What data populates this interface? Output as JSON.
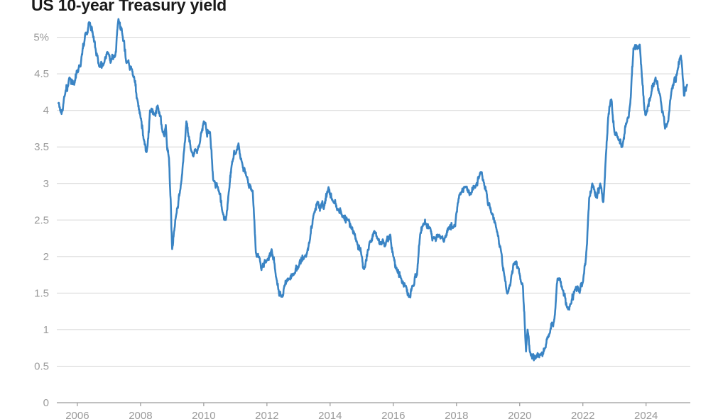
{
  "page": {
    "title": "US 10-year Treasury yield"
  },
  "colors": {
    "line": "#3a84c4",
    "grid": "#d4d4d4",
    "tick_text": "#9a9a9a",
    "title": "#1a1a1a"
  },
  "chart_data": {
    "type": "line",
    "title": "US 10-year Treasury yield",
    "xlabel": "",
    "ylabel": "",
    "xlim": [
      2005.35,
      2025.4
    ],
    "ylim": [
      0,
      5.2
    ],
    "grid": true,
    "y_ticks": [
      {
        "value": 0,
        "label": "0"
      },
      {
        "value": 0.5,
        "label": "0.5"
      },
      {
        "value": 1,
        "label": "1"
      },
      {
        "value": 1.5,
        "label": "1.5"
      },
      {
        "value": 2,
        "label": "2"
      },
      {
        "value": 2.5,
        "label": "2.5"
      },
      {
        "value": 3,
        "label": "3"
      },
      {
        "value": 3.5,
        "label": "3.5"
      },
      {
        "value": 4,
        "label": "4"
      },
      {
        "value": 4.5,
        "label": "4.5"
      },
      {
        "value": 5,
        "label": "5%"
      }
    ],
    "x_ticks": [
      {
        "value": 2006,
        "label": "2006"
      },
      {
        "value": 2008,
        "label": "2008"
      },
      {
        "value": 2010,
        "label": "2010"
      },
      {
        "value": 2012,
        "label": "2012"
      },
      {
        "value": 2014,
        "label": "2014"
      },
      {
        "value": 2016,
        "label": "2016"
      },
      {
        "value": 2018,
        "label": "2018"
      },
      {
        "value": 2020,
        "label": "2020"
      },
      {
        "value": 2022,
        "label": "2022"
      },
      {
        "value": 2024,
        "label": "2024"
      }
    ],
    "series": [
      {
        "color": "#3a84c4",
        "x": [
          2005.4,
          2005.5,
          2005.6,
          2005.75,
          2005.9,
          2006.0,
          2006.1,
          2006.25,
          2006.4,
          2006.5,
          2006.6,
          2006.7,
          2006.85,
          2006.95,
          2007.05,
          2007.2,
          2007.3,
          2007.45,
          2007.55,
          2007.7,
          2007.8,
          2007.9,
          2008.0,
          2008.1,
          2008.2,
          2008.3,
          2008.45,
          2008.55,
          2008.7,
          2008.8,
          2008.9,
          2008.96,
          2009.0,
          2009.1,
          2009.25,
          2009.35,
          2009.45,
          2009.6,
          2009.75,
          2009.85,
          2010.0,
          2010.2,
          2010.3,
          2010.45,
          2010.6,
          2010.7,
          2010.8,
          2010.9,
          2011.0,
          2011.1,
          2011.2,
          2011.35,
          2011.55,
          2011.65,
          2011.75,
          2011.85,
          2012.0,
          2012.15,
          2012.3,
          2012.45,
          2012.55,
          2012.7,
          2012.85,
          2013.0,
          2013.2,
          2013.35,
          2013.5,
          2013.6,
          2013.8,
          2013.95,
          2014.1,
          2014.25,
          2014.4,
          2014.55,
          2014.7,
          2014.85,
          2015.0,
          2015.1,
          2015.25,
          2015.4,
          2015.5,
          2015.6,
          2015.75,
          2015.9,
          2016.0,
          2016.1,
          2016.25,
          2016.4,
          2016.5,
          2016.6,
          2016.75,
          2016.85,
          2016.95,
          2017.15,
          2017.3,
          2017.45,
          2017.6,
          2017.75,
          2017.9,
          2018.0,
          2018.1,
          2018.3,
          2018.45,
          2018.6,
          2018.75,
          2018.85,
          2019.0,
          2019.1,
          2019.25,
          2019.4,
          2019.6,
          2019.7,
          2019.8,
          2019.95,
          2020.1,
          2020.2,
          2020.25,
          2020.35,
          2020.5,
          2020.65,
          2020.8,
          2020.95,
          2021.1,
          2021.2,
          2021.35,
          2021.5,
          2021.6,
          2021.75,
          2021.9,
          2022.0,
          2022.1,
          2022.2,
          2022.3,
          2022.45,
          2022.55,
          2022.65,
          2022.8,
          2022.9,
          2023.0,
          2023.15,
          2023.25,
          2023.4,
          2023.5,
          2023.6,
          2023.8,
          2023.95,
          2024.0,
          2024.15,
          2024.3,
          2024.45,
          2024.6,
          2024.7,
          2024.8,
          2024.9,
          2025.0,
          2025.1,
          2025.2,
          2025.3
        ],
        "y": [
          4.1,
          3.95,
          4.2,
          4.45,
          4.35,
          4.55,
          4.6,
          5.05,
          5.2,
          5.0,
          4.75,
          4.6,
          4.65,
          4.8,
          4.65,
          4.75,
          5.25,
          4.95,
          4.65,
          4.6,
          4.45,
          4.15,
          3.9,
          3.6,
          3.45,
          4.0,
          3.95,
          4.05,
          3.7,
          3.8,
          3.35,
          2.7,
          2.1,
          2.5,
          2.9,
          3.3,
          3.85,
          3.45,
          3.45,
          3.5,
          3.85,
          3.7,
          3.05,
          2.95,
          2.6,
          2.5,
          2.9,
          3.3,
          3.4,
          3.55,
          3.3,
          3.1,
          2.9,
          2.05,
          2.0,
          1.85,
          1.95,
          2.1,
          1.7,
          1.45,
          1.6,
          1.7,
          1.75,
          1.85,
          2.0,
          2.2,
          2.6,
          2.75,
          2.65,
          2.95,
          2.75,
          2.65,
          2.55,
          2.5,
          2.4,
          2.2,
          2.0,
          1.85,
          2.2,
          2.35,
          2.25,
          2.2,
          2.15,
          2.3,
          2.0,
          1.85,
          1.7,
          1.6,
          1.45,
          1.6,
          1.75,
          2.3,
          2.45,
          2.4,
          2.25,
          2.3,
          2.2,
          2.4,
          2.4,
          2.6,
          2.85,
          2.95,
          2.85,
          2.95,
          3.15,
          3.05,
          2.7,
          2.6,
          2.4,
          2.1,
          1.5,
          1.6,
          1.9,
          1.85,
          1.6,
          0.7,
          1.0,
          0.65,
          0.6,
          0.65,
          0.75,
          0.95,
          1.15,
          1.7,
          1.55,
          1.3,
          1.35,
          1.55,
          1.5,
          1.65,
          2.0,
          2.8,
          3.0,
          2.8,
          3.0,
          2.75,
          3.9,
          4.15,
          3.7,
          3.6,
          3.5,
          3.85,
          4.1,
          4.85,
          4.9,
          4.0,
          3.95,
          4.2,
          4.45,
          4.2,
          3.75,
          3.85,
          4.25,
          4.45,
          4.55,
          4.75,
          4.2,
          4.35
        ]
      }
    ]
  }
}
